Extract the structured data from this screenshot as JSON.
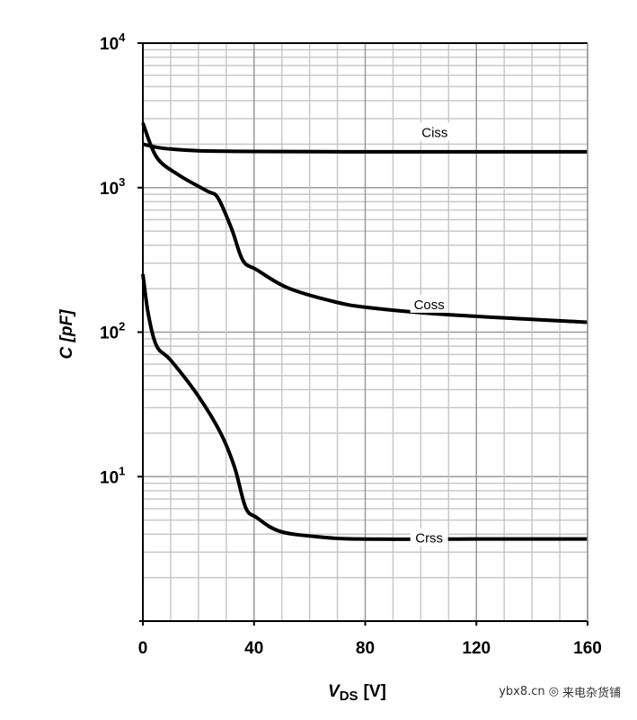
{
  "chart_data": {
    "type": "line",
    "title": "",
    "xlabel": "V",
    "xlabel_sub": "DS",
    "xlabel_unit": "[V]",
    "ylabel": "C  [pF]",
    "xlim": [
      0,
      160
    ],
    "ylim": [
      1,
      10000
    ],
    "yscale": "log",
    "grid": true,
    "x_ticks": [
      0,
      40,
      80,
      120,
      160
    ],
    "x_tick_labels": [
      "0",
      "40",
      "80",
      "120",
      "160"
    ],
    "y_ticks": [
      {
        "base": "10",
        "exp": "1",
        "value": 10
      },
      {
        "base": "10",
        "exp": "2",
        "value": 100
      },
      {
        "base": "10",
        "exp": "3",
        "value": 1000
      },
      {
        "base": "10",
        "exp": "4",
        "value": 10000
      }
    ],
    "series": [
      {
        "name": "Ciss",
        "label_at": [
          105,
          2400
        ],
        "x": [
          0,
          5,
          10,
          20,
          40,
          80,
          120,
          160
        ],
        "y": [
          2000,
          1900,
          1850,
          1800,
          1780,
          1770,
          1770,
          1770
        ]
      },
      {
        "name": "Coss",
        "label_at": [
          103,
          155
        ],
        "x": [
          0,
          5,
          13,
          23,
          27,
          32,
          36,
          41,
          52,
          68,
          81,
          110,
          160
        ],
        "y": [
          2800,
          1620,
          1220,
          950,
          850,
          515,
          313,
          270,
          203,
          164,
          148,
          132,
          117
        ]
      },
      {
        "name": "Crss",
        "label_at": [
          103,
          3.75
        ],
        "x": [
          0,
          2,
          5,
          10,
          20,
          28,
          33,
          37,
          41,
          49,
          62,
          78,
          120,
          160
        ],
        "y": [
          252,
          132,
          80,
          64,
          36,
          20,
          11.6,
          6.1,
          5.2,
          4.2,
          3.85,
          3.7,
          3.7,
          3.7
        ]
      }
    ]
  },
  "watermark": {
    "site": "ybx8.cn",
    "name": "来电杂货铺"
  }
}
